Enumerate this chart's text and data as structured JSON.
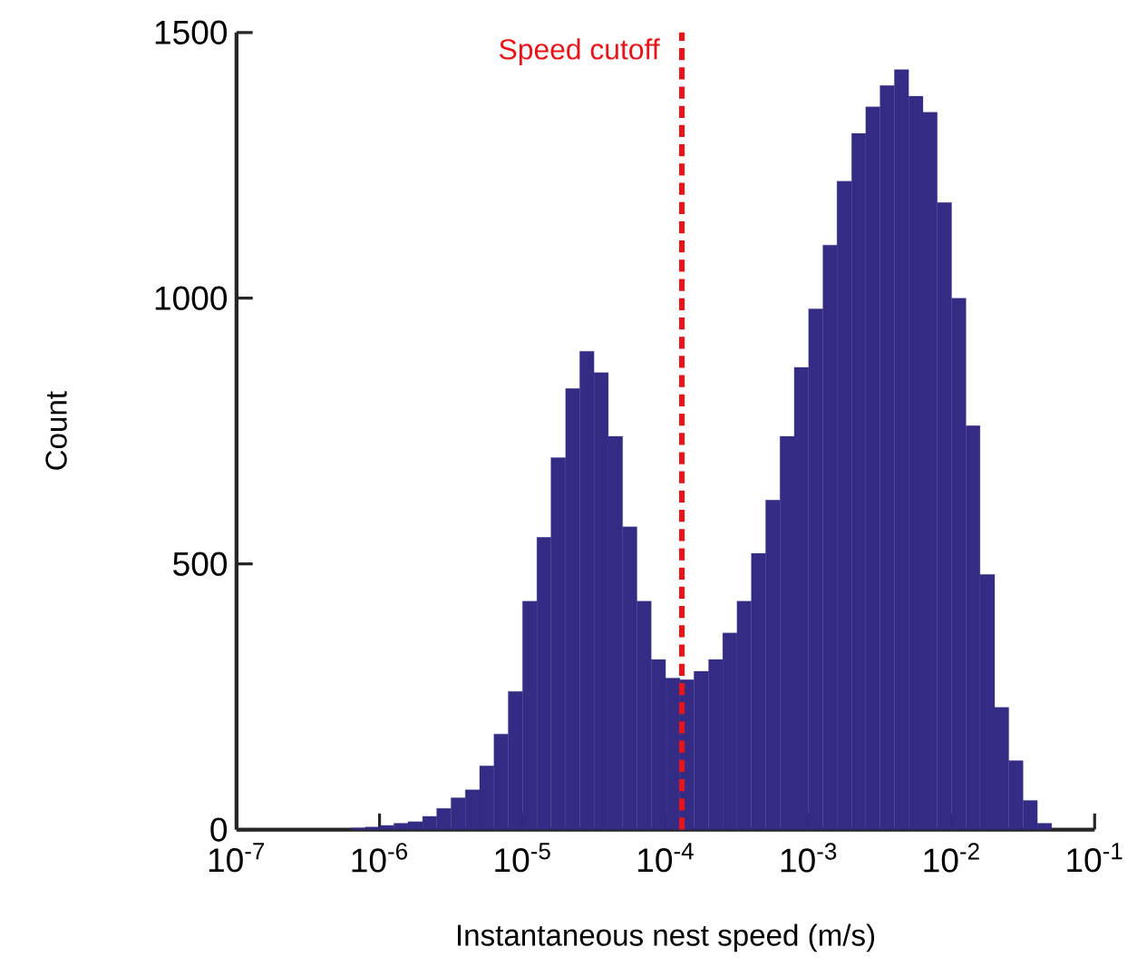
{
  "chart_data": {
    "type": "histogram",
    "xlabel": "Instantaneous nest speed (m/s)",
    "ylabel": "Count",
    "bins": [
      6.31e-07,
      7.94e-07,
      1e-06,
      1.26e-06,
      1.58e-06,
      2e-06,
      2.51e-06,
      3.16e-06,
      3.98e-06,
      5.01e-06,
      6.31e-06,
      7.94e-06,
      1e-05,
      1.26e-05,
      1.58e-05,
      2e-05,
      2.51e-05,
      3.16e-05,
      3.98e-05,
      5.01e-05,
      6.31e-05,
      7.94e-05,
      0.0001,
      0.000126,
      0.000158,
      0.0002,
      0.000251,
      0.000316,
      0.000398,
      0.000501,
      0.000631,
      0.000794,
      0.001,
      0.00126,
      0.00158,
      0.002,
      0.00251,
      0.00316,
      0.00398,
      0.00501,
      0.00631,
      0.00794,
      0.01,
      0.0126,
      0.0158,
      0.02,
      0.0251,
      0.0316,
      0.0398,
      0.0501
    ],
    "values": [
      3,
      5,
      8,
      12,
      15,
      25,
      40,
      60,
      75,
      120,
      180,
      260,
      430,
      550,
      700,
      830,
      900,
      860,
      740,
      570,
      430,
      320,
      285,
      282,
      298,
      320,
      370,
      430,
      520,
      620,
      740,
      870,
      980,
      1100,
      1220,
      1310,
      1360,
      1400,
      1430,
      1380,
      1350,
      1180,
      1000,
      760,
      480,
      230,
      130,
      55,
      12
    ],
    "color": "#342c84",
    "log": "x",
    "xlim": [
      1e-07,
      0.1
    ],
    "xticks": [
      {
        "value": 1e-07,
        "label": "10$^{-7}$"
      },
      {
        "value": 1e-06,
        "label": "10$^{-6}$"
      },
      {
        "value": 1e-05,
        "label": "10$^{-5}$"
      },
      {
        "value": 0.0001,
        "label": "10$^{-4}$"
      },
      {
        "value": 0.001,
        "label": "10$^{-3}$"
      },
      {
        "value": 0.01,
        "label": "10$^{-2}$"
      },
      {
        "value": 0.1,
        "label": "10$^{-1}$"
      }
    ],
    "ylim": [
      0,
      1500
    ],
    "yticks": [
      0,
      500,
      1000,
      1500
    ],
    "ref_lines": [
      {
        "axis": "x",
        "value": 0.00013,
        "label": "Speed cutoff",
        "color": "#e8141a",
        "line_style": "dashed"
      }
    ],
    "grid": false
  }
}
